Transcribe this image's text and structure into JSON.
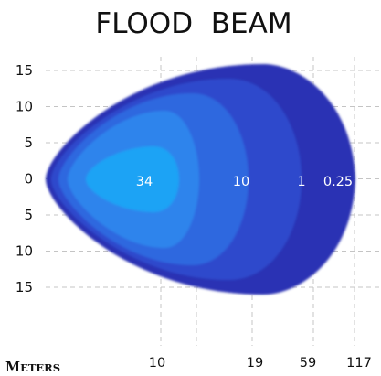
{
  "chart_data": {
    "type": "area",
    "title": "FLOOD  BEAM",
    "xlabel": "Meters",
    "y_ticks": [
      "15",
      "10",
      "5",
      "0",
      "5",
      "10",
      "15"
    ],
    "y_values": [
      15,
      10,
      5,
      0,
      -5,
      -10,
      -15
    ],
    "x_ticks": [
      "10",
      "19",
      "59",
      "117"
    ],
    "grid": true,
    "zones": [
      {
        "label": "34",
        "color": "#0d9cf2",
        "reach_m": 10
      },
      {
        "label": "10",
        "color": "#1a66e0",
        "reach_m": 19
      },
      {
        "label": "1",
        "color": "#2146cf",
        "reach_m": 59
      },
      {
        "label": "0.25",
        "color": "#2933bd",
        "reach_m": 117
      }
    ],
    "outer_colors": [
      "#2a33b4",
      "#2e49cc",
      "#2f67df",
      "#2f84ec",
      "#1aa3f5"
    ]
  }
}
